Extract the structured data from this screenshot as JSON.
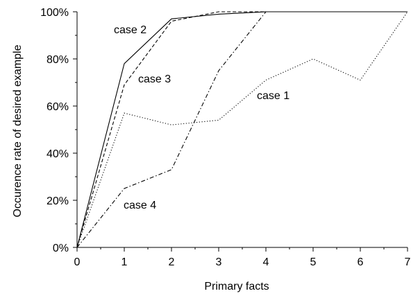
{
  "chart_data": {
    "type": "line",
    "xlabel": "Primary facts",
    "ylabel": "Occurence rate of desired example",
    "xlim": [
      0,
      7
    ],
    "ylim": [
      0,
      100
    ],
    "x_ticks": [
      "0",
      "1",
      "2",
      "3",
      "4",
      "5",
      "6",
      "7"
    ],
    "y_ticks": [
      "0%",
      "20%",
      "40%",
      "60%",
      "80%",
      "100%"
    ],
    "x": [
      0,
      1,
      2,
      3,
      4,
      5,
      6,
      7
    ],
    "series": [
      {
        "name": "case 1",
        "style": "dotted",
        "values": [
          0,
          57,
          52,
          54,
          71,
          80,
          71,
          100
        ]
      },
      {
        "name": "case 2",
        "style": "solid",
        "values": [
          0,
          78,
          97,
          99,
          100,
          100,
          100,
          100
        ]
      },
      {
        "name": "case 3",
        "style": "dashed",
        "values": [
          0,
          69,
          96,
          100,
          100,
          100,
          100,
          100
        ]
      },
      {
        "name": "case 4",
        "style": "dash-dot",
        "values": [
          0,
          25,
          33,
          75,
          100,
          100,
          100,
          100
        ]
      }
    ],
    "annotations": [
      "case 2",
      "case 3",
      "case 1",
      "case 4"
    ],
    "grid": false,
    "legend": "none",
    "line_color": "#000000"
  }
}
